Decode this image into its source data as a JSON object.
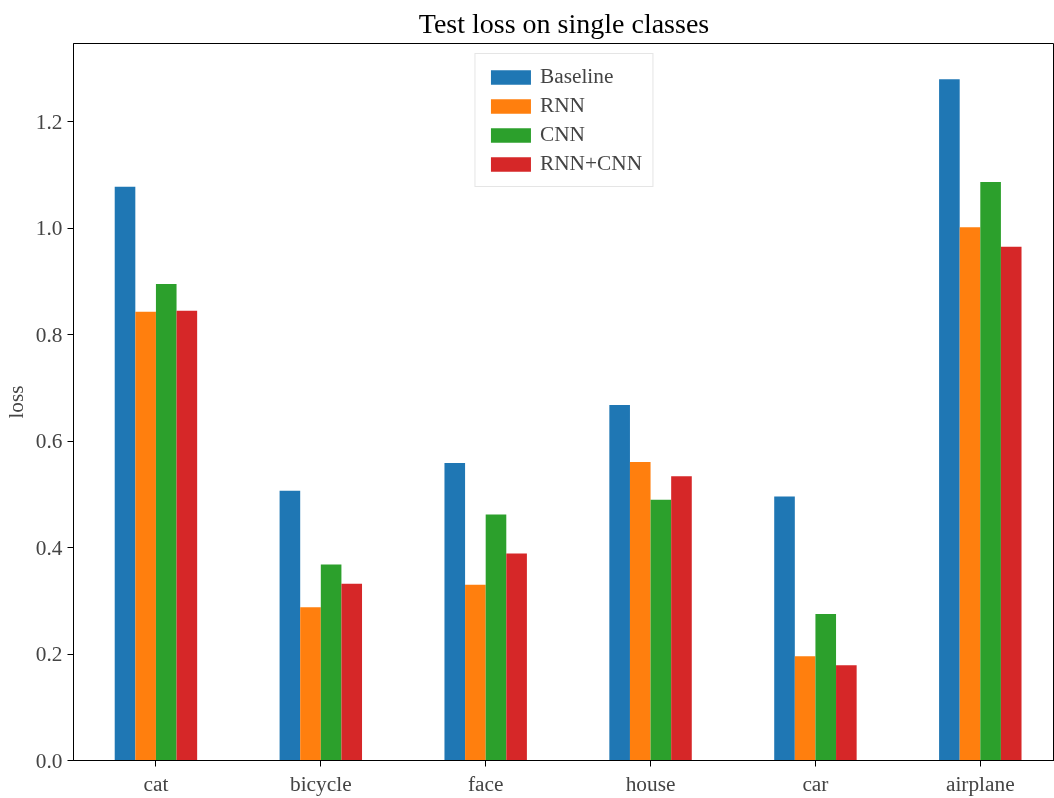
{
  "chart_data": {
    "type": "bar",
    "title": "Test loss on single classes",
    "ylabel": "loss",
    "categories": [
      "cat",
      "bicycle",
      "face",
      "house",
      "car",
      "airplane"
    ],
    "series": [
      {
        "name": "Baseline",
        "color": "#1f77b4",
        "values": [
          1.078,
          0.507,
          0.559,
          0.668,
          0.496,
          1.28
        ]
      },
      {
        "name": "RNN",
        "color": "#ff7f0e",
        "values": [
          0.843,
          0.288,
          0.33,
          0.561,
          0.196,
          1.002
        ]
      },
      {
        "name": "CNN",
        "color": "#2ca02c",
        "values": [
          0.895,
          0.368,
          0.462,
          0.49,
          0.275,
          1.087
        ]
      },
      {
        "name": "RNN+CNN",
        "color": "#d62728",
        "values": [
          0.845,
          0.332,
          0.389,
          0.534,
          0.179,
          0.965
        ]
      }
    ],
    "ylim": [
      0,
      1.347
    ],
    "yticks": [
      {
        "value": 0,
        "label": "0.0"
      },
      0.2,
      0.4,
      0.6,
      0.8,
      {
        "value": 1,
        "label": "1.0"
      },
      1.2
    ],
    "grid": false,
    "legend": "top"
  }
}
